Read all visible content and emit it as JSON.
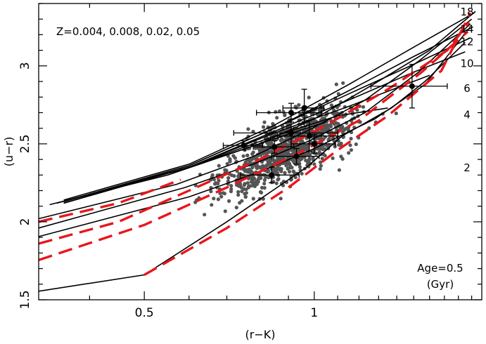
{
  "chart_data": {
    "type": "scatter",
    "title": "",
    "xlabel": "(r−K)",
    "ylabel": "(u−r)",
    "xscale": "log",
    "xlim": [
      0.325,
      1.98
    ],
    "ylim": [
      1.5,
      3.4
    ],
    "xticks": [
      {
        "value": 0.5,
        "label": "0.5"
      },
      {
        "value": 1.0,
        "label": "1"
      }
    ],
    "yticks": [
      {
        "value": 1.5,
        "label": "1.5"
      },
      {
        "value": 2.0,
        "label": "2"
      },
      {
        "value": 2.5,
        "label": "2.5"
      },
      {
        "value": 3.0,
        "label": "3"
      }
    ],
    "grid": false,
    "annotation_top_left": "Z=0.004, 0.008, 0.02, 0.05",
    "annotation_bottom_right": [
      "Age=0.5",
      "(Gyr)"
    ],
    "colors": {
      "model_lines": "#000000",
      "age_0_5_track": "#e8171c",
      "galaxies": "#555555",
      "binned_points": "#000000"
    },
    "age_labels": [
      {
        "label": "18",
        "y": 3.35
      },
      {
        "label": "14",
        "y": 3.24
      },
      {
        "label": "12",
        "y": 3.16
      },
      {
        "label": "10",
        "y": 3.02
      },
      {
        "label": "6",
        "y": 2.86
      },
      {
        "label": "4",
        "y": 2.69
      },
      {
        "label": "2",
        "y": 2.35
      }
    ],
    "metallicity_tracks": [
      {
        "points": [
          [
            0.325,
            1.555
          ],
          [
            0.5,
            1.66
          ],
          [
            0.7,
            2.0
          ],
          [
            0.97,
            2.35
          ],
          [
            1.12,
            2.55
          ],
          [
            1.37,
            2.73
          ],
          [
            1.57,
            2.9
          ],
          [
            1.85,
            3.15
          ]
        ]
      },
      {
        "points": [
          [
            0.325,
            1.905
          ],
          [
            0.6,
            2.16
          ],
          [
            0.8,
            2.32
          ],
          [
            1.0,
            2.47
          ],
          [
            1.28,
            2.66
          ],
          [
            1.57,
            2.88
          ],
          [
            1.87,
            3.23
          ]
        ]
      },
      {
        "points": [
          [
            0.325,
            1.96
          ],
          [
            0.59,
            2.22
          ],
          [
            0.78,
            2.37
          ],
          [
            0.98,
            2.52
          ],
          [
            1.23,
            2.7
          ],
          [
            1.53,
            2.96
          ],
          [
            1.89,
            3.27
          ]
        ]
      },
      {
        "points": [
          [
            0.325,
            2.02
          ],
          [
            0.57,
            2.24
          ],
          [
            0.78,
            2.42
          ],
          [
            0.98,
            2.59
          ],
          [
            1.23,
            2.78
          ],
          [
            1.53,
            3.03
          ],
          [
            1.9,
            3.3
          ]
        ]
      },
      {
        "points": [
          [
            0.35,
            2.12
          ],
          [
            0.6,
            2.35
          ],
          [
            0.8,
            2.5
          ],
          [
            1.0,
            2.66
          ],
          [
            1.27,
            2.88
          ],
          [
            1.6,
            3.1
          ],
          [
            1.93,
            3.35
          ]
        ]
      }
    ],
    "isochrones": [
      {
        "age": "18",
        "points": [
          [
            0.36,
            2.14
          ],
          [
            0.6,
            2.37
          ],
          [
            0.85,
            2.62
          ],
          [
            1.15,
            2.88
          ],
          [
            1.5,
            3.12
          ],
          [
            1.92,
            3.34
          ]
        ]
      },
      {
        "age": "14",
        "points": [
          [
            0.36,
            2.13
          ],
          [
            0.6,
            2.36
          ],
          [
            0.85,
            2.6
          ],
          [
            1.15,
            2.84
          ],
          [
            1.5,
            3.06
          ],
          [
            1.91,
            3.25
          ]
        ]
      },
      {
        "age": "12",
        "points": [
          [
            0.36,
            2.13
          ],
          [
            0.6,
            2.36
          ],
          [
            0.85,
            2.6
          ],
          [
            1.15,
            2.82
          ],
          [
            1.5,
            3.01
          ],
          [
            1.89,
            3.18
          ]
        ]
      },
      {
        "age": "10",
        "points": [
          [
            0.36,
            2.12
          ],
          [
            0.6,
            2.35
          ],
          [
            0.85,
            2.58
          ],
          [
            1.15,
            2.78
          ],
          [
            1.5,
            2.96
          ],
          [
            1.85,
            3.09
          ]
        ]
      },
      {
        "age": "6",
        "points": [
          [
            0.36,
            2.12
          ],
          [
            0.6,
            2.35
          ],
          [
            0.85,
            2.57
          ],
          [
            1.15,
            2.74
          ],
          [
            1.6,
            2.94
          ]
        ]
      },
      {
        "age": "4",
        "points": [
          [
            0.36,
            2.12
          ],
          [
            0.6,
            2.35
          ],
          [
            0.85,
            2.55
          ],
          [
            1.1,
            2.68
          ],
          [
            1.35,
            2.73
          ]
        ]
      },
      {
        "age": "2",
        "points": [
          [
            0.34,
            2.11
          ],
          [
            0.55,
            2.3
          ],
          [
            0.8,
            2.5
          ],
          [
            0.95,
            2.59
          ],
          [
            1.05,
            2.64
          ]
        ]
      }
    ],
    "age_0_5_tracks": [
      {
        "points": [
          [
            0.325,
            1.755
          ],
          [
            0.5,
            1.98
          ],
          [
            0.7,
            2.22
          ],
          [
            0.95,
            2.45
          ],
          [
            1.2,
            2.65
          ],
          [
            1.55,
            2.96
          ],
          [
            1.87,
            3.22
          ]
        ]
      },
      {
        "points": [
          [
            0.325,
            1.86
          ],
          [
            0.45,
            2.0
          ],
          [
            0.6,
            2.2
          ],
          [
            0.8,
            2.4
          ],
          [
            1.05,
            2.62
          ],
          [
            1.35,
            2.85
          ],
          [
            1.72,
            3.1
          ],
          [
            1.88,
            3.28
          ]
        ]
      },
      {
        "points": [
          [
            0.325,
            2.0
          ],
          [
            0.45,
            2.12
          ],
          [
            0.58,
            2.27
          ]
        ]
      },
      {
        "points": [
          [
            0.5,
            1.66
          ],
          [
            0.7,
            1.96
          ],
          [
            0.9,
            2.22
          ],
          [
            1.1,
            2.46
          ],
          [
            1.35,
            2.68
          ],
          [
            1.68,
            2.97
          ],
          [
            1.89,
            3.34
          ]
        ]
      }
    ],
    "galaxy_cloud": {
      "n": 1000,
      "x_median": 0.9,
      "y_median": 2.5,
      "x_scatter": 0.11,
      "y_scatter": 0.13
    },
    "binned_points": [
      {
        "x": 0.75,
        "y": 2.49,
        "xerr": 0.06,
        "yerr": 0.03
      },
      {
        "x": 0.84,
        "y": 2.3,
        "xerr": 0.1,
        "yerr": 0.05
      },
      {
        "x": 0.85,
        "y": 2.48,
        "xerr": 0.07,
        "yerr": 0.04
      },
      {
        "x": 0.91,
        "y": 2.7,
        "xerr": 0.12,
        "yerr": 0.06
      },
      {
        "x": 0.91,
        "y": 2.57,
        "xerr": 0.19,
        "yerr": 0.09
      },
      {
        "x": 0.93,
        "y": 2.42,
        "xerr": 0.09,
        "yerr": 0.05
      },
      {
        "x": 0.96,
        "y": 2.73,
        "xerr": 0.08,
        "yerr": 0.12
      },
      {
        "x": 0.98,
        "y": 2.55,
        "xerr": 0.12,
        "yerr": 0.1
      },
      {
        "x": 1.0,
        "y": 2.5,
        "xerr": 0.09,
        "yerr": 0.06
      },
      {
        "x": 1.49,
        "y": 2.87,
        "xerr": 0.23,
        "yerr": 0.14
      }
    ]
  }
}
